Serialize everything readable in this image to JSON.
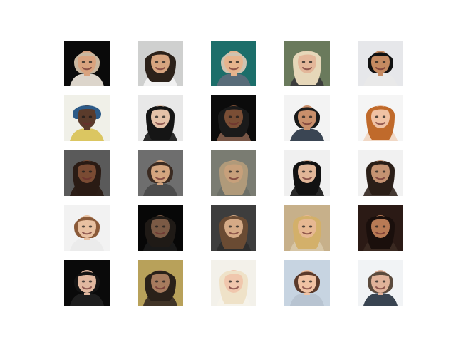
{
  "figure": {
    "rows": 5,
    "cols": 5,
    "tiles": [
      {
        "bg": "#0a0a0a",
        "skin": "#d9a37f",
        "hair": "#c9b7a0",
        "hairStyle": "short",
        "shirt": "#e8e0d6"
      },
      {
        "bg": "#cfd0cf",
        "skin": "#d6a47f",
        "hair": "#2b2119",
        "hairStyle": "wide",
        "shirt": "#f2f2f2"
      },
      {
        "bg": "#1c6e6a",
        "skin": "#e6b48d",
        "hair": "#cfc3b0",
        "hairStyle": "short",
        "shirt": "#5c6b7a"
      },
      {
        "bg": "#6a7a5c",
        "skin": "#e3b79a",
        "hair": "#e6d7b9",
        "hairStyle": "long",
        "shirt": "#3a3a3a"
      },
      {
        "bg": "#e6e7ea",
        "skin": "#c58a61",
        "hair": "#111111",
        "hairStyle": "short",
        "shirt": "#e9e9e9"
      },
      {
        "bg": "#f0f0e8",
        "skin": "#5a3b2b",
        "hair": "#2d5b88",
        "hairStyle": "hat",
        "shirt": "#d9c35a"
      },
      {
        "bg": "#e8e8e8",
        "skin": "#e5c2a8",
        "hair": "#151515",
        "hairStyle": "long",
        "shirt": "#202020"
      },
      {
        "bg": "#0b0b0b",
        "skin": "#7a4e35",
        "hair": "#1a1a1a",
        "hairStyle": "wide",
        "shirt": "#7e5b4a"
      },
      {
        "bg": "#f3f3f3",
        "skin": "#c98f6b",
        "hair": "#1a1a1a",
        "hairStyle": "short",
        "shirt": "#2f3b4a"
      },
      {
        "bg": "#f5f5f5",
        "skin": "#f0c2a4",
        "hair": "#c06a2b",
        "hairStyle": "long",
        "shirt": "#f0d6c2"
      },
      {
        "bg": "#5a5a5a",
        "skin": "#7a4b33",
        "hair": "#2a1b14",
        "hairStyle": "long",
        "shirt": "#2a1b14"
      },
      {
        "bg": "#6e6e6e",
        "skin": "#d4a57f",
        "hair": "#3a2a21",
        "hairStyle": "short",
        "shirt": "#4a4a4a"
      },
      {
        "bg": "#7a7c72",
        "skin": "#c7a07b",
        "hair": "#b09a7a",
        "hairStyle": "long",
        "shirt": "#6b6f66"
      },
      {
        "bg": "#f0f0f0",
        "skin": "#e1b698",
        "hair": "#121212",
        "hairStyle": "long",
        "shirt": "#1e1e1e"
      },
      {
        "bg": "#f1f1f1",
        "skin": "#c59372",
        "hair": "#2a1e17",
        "hairStyle": "long",
        "shirt": "#3a2e28"
      },
      {
        "bg": "#f2f2f2",
        "skin": "#e8c1a1",
        "hair": "#8a5a39",
        "hairStyle": "short",
        "shirt": "#eaeaea"
      },
      {
        "bg": "#070707",
        "skin": "#7b5a45",
        "hair": "#1f1a16",
        "hairStyle": "wide",
        "shirt": "#1a1a1a"
      },
      {
        "bg": "#3d3d3d",
        "skin": "#d5aa86",
        "hair": "#6a4b33",
        "hairStyle": "long",
        "shirt": "#2d2d2d"
      },
      {
        "bg": "#c7b08a",
        "skin": "#e7b892",
        "hair": "#d3b06a",
        "hairStyle": "long",
        "shirt": "#d8c7a8"
      },
      {
        "bg": "#2b1a15",
        "skin": "#b87a55",
        "hair": "#1a0f0c",
        "hairStyle": "long",
        "shirt": "#3b2a22"
      },
      {
        "bg": "#0a0a0a",
        "skin": "#e1b8a0",
        "hair": "#141414",
        "hairStyle": "short",
        "shirt": "#202020"
      },
      {
        "bg": "#b8a15a",
        "skin": "#a77b5e",
        "hair": "#2a2119",
        "hairStyle": "wide",
        "shirt": "#3a2f25"
      },
      {
        "bg": "#f3f1ea",
        "skin": "#f0c7ad",
        "hair": "#efe2c8",
        "hairStyle": "long",
        "shirt": "#f6f2ea"
      },
      {
        "bg": "#c7d4e1",
        "skin": "#f0c2a3",
        "hair": "#5a3a2b",
        "hairStyle": "short",
        "shirt": "#b7c3d0"
      },
      {
        "bg": "#f1f3f5",
        "skin": "#e0b29a",
        "hair": "#5b4a3d",
        "hairStyle": "short",
        "shirt": "#2e3a48"
      }
    ]
  }
}
